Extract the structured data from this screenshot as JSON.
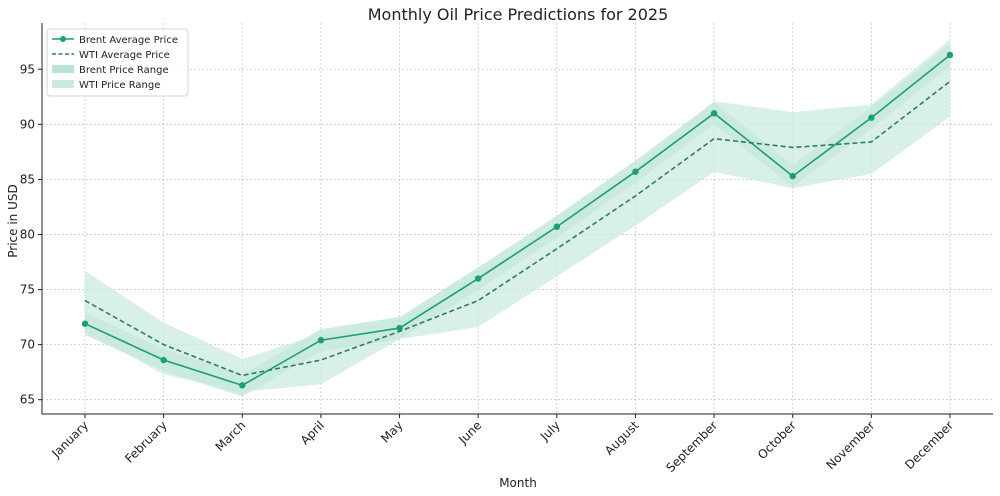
{
  "chart_data": {
    "type": "line",
    "title": "Monthly Oil Price Predictions for 2025",
    "xlabel": "Month",
    "ylabel": "Price in USD",
    "categories": [
      "January",
      "February",
      "March",
      "April",
      "May",
      "June",
      "July",
      "August",
      "September",
      "October",
      "November",
      "December"
    ],
    "ylim": [
      63.7,
      99.2
    ],
    "yticks": [
      65,
      70,
      75,
      80,
      85,
      90,
      95
    ],
    "grid": true,
    "legend_position": "top-left",
    "series": [
      {
        "name": "Brent Average Price",
        "style": "solid-markers",
        "color": "#1a9e7c",
        "values": [
          71.9,
          68.6,
          66.3,
          70.4,
          71.5,
          76.0,
          80.7,
          85.7,
          91.0,
          85.3,
          90.6,
          96.3
        ]
      },
      {
        "name": "WTI Average Price",
        "style": "dashed",
        "color": "#2e7d62",
        "values": [
          74.0,
          70.0,
          67.2,
          68.6,
          71.2,
          74.0,
          78.7,
          83.5,
          88.7,
          87.9,
          88.4,
          93.9
        ]
      }
    ],
    "ranges": [
      {
        "name": "Brent Price Range",
        "color": "#b9e3d3",
        "low": [
          70.9,
          67.6,
          65.3,
          69.4,
          70.5,
          75.0,
          79.7,
          84.7,
          90.0,
          84.3,
          89.6,
          95.3
        ],
        "high": [
          72.9,
          69.6,
          67.3,
          71.4,
          72.5,
          77.0,
          81.7,
          86.7,
          92.0,
          86.3,
          91.6,
          97.3
        ]
      },
      {
        "name": "WTI Price Range",
        "color": "#c9eadd",
        "low": [
          71.3,
          67.3,
          65.7,
          66.4,
          70.5,
          71.6,
          76.2,
          80.8,
          85.7,
          84.2,
          85.5,
          90.7
        ],
        "high": [
          76.7,
          72.0,
          68.7,
          71.0,
          72.2,
          76.4,
          80.9,
          86.2,
          92.1,
          91.1,
          91.8,
          97.7
        ]
      }
    ]
  }
}
